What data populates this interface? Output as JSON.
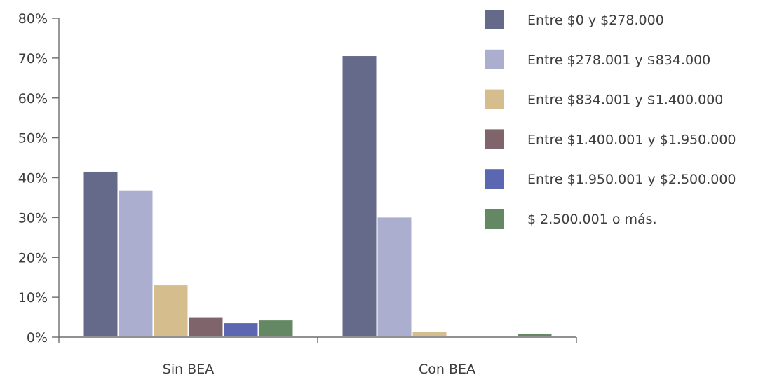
{
  "chart_data": {
    "type": "bar",
    "title": "",
    "xlabel": "",
    "ylabel": "",
    "categories": [
      "Sin BEA",
      "Con BEA"
    ],
    "y_ticks": [
      "0%",
      "10%",
      "20%",
      "30%",
      "40%",
      "50%",
      "60%",
      "70%",
      "80%"
    ],
    "ylim": [
      0,
      80
    ],
    "y_unit": "%",
    "grid": false,
    "legend_position": "right",
    "series": [
      {
        "name": "Entre $0 y $278.000",
        "color": "#666a8a",
        "values": [
          41.5,
          70.5
        ]
      },
      {
        "name": "Entre $278.001 y $834.000",
        "color": "#abaecf",
        "values": [
          36.8,
          30.0
        ]
      },
      {
        "name": "Entre $834.001 y $1.400.000",
        "color": "#d6bd8e",
        "values": [
          13.0,
          1.3
        ]
      },
      {
        "name": "Entre $1.400.001 y $1.950.000",
        "color": "#7f656b",
        "values": [
          5.0,
          0
        ]
      },
      {
        "name": "Entre $1.950.001 y $2.500.000",
        "color": "#5b68b1",
        "values": [
          3.5,
          0
        ]
      },
      {
        "name": "$ 2.500.001 o más.",
        "color": "#648863",
        "values": [
          4.2,
          0.8
        ]
      }
    ]
  }
}
